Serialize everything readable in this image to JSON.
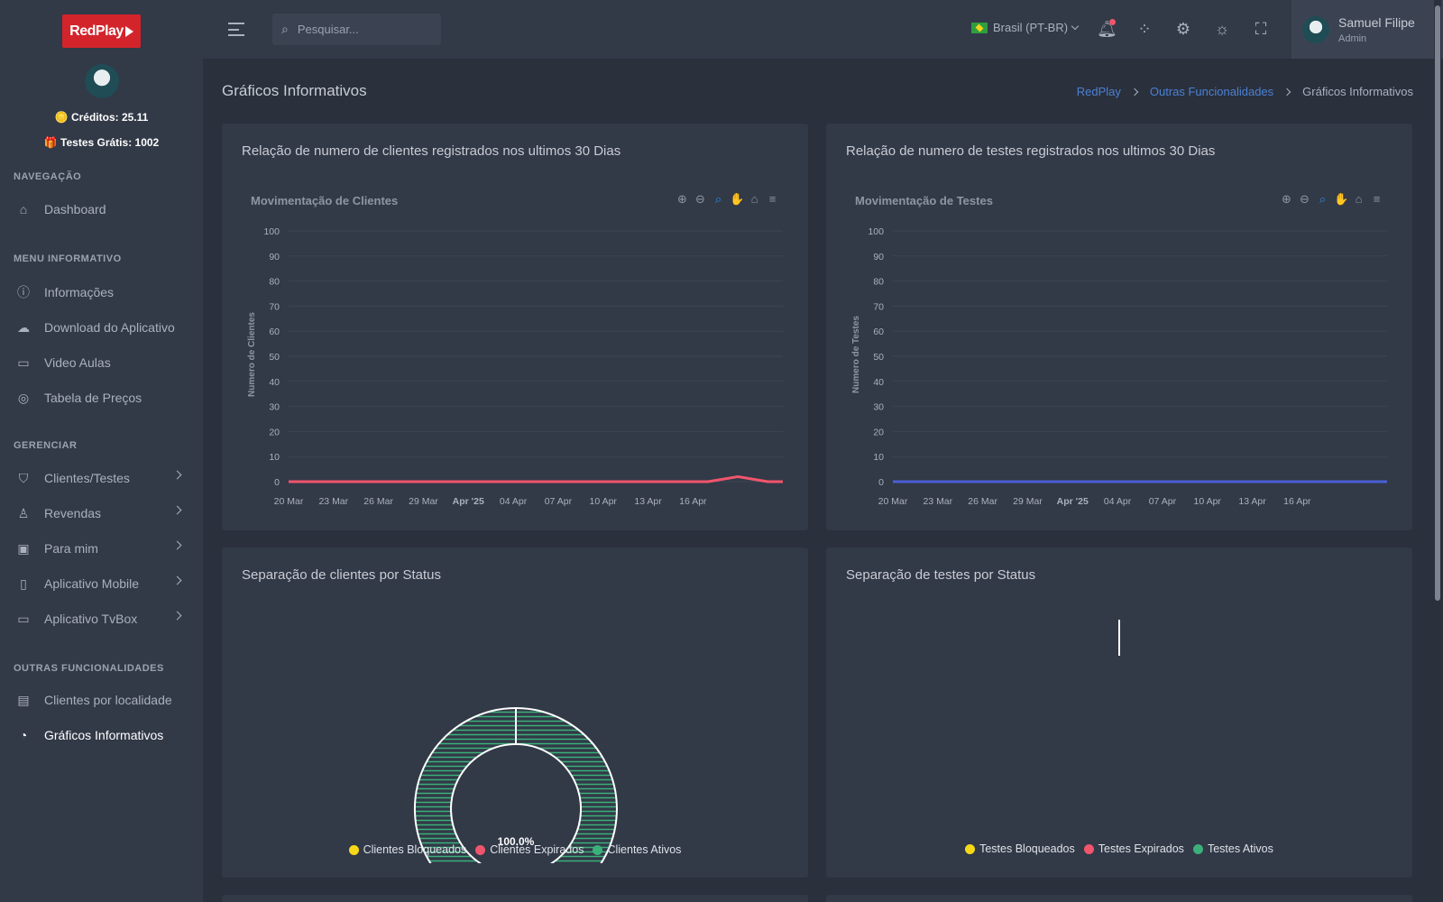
{
  "brand": {
    "logo_text": "RedPlay"
  },
  "sidebar": {
    "credits": "🪙 Créditos: 25.11",
    "free_tests": "🎁 Testes Grátis: 1002",
    "sections": [
      {
        "title": "NAVEGAÇÃO"
      },
      {
        "title": "MENU INFORMATIVO"
      },
      {
        "title": "GERENCIAR"
      },
      {
        "title": "OUTRAS FUNCIONALIDADES"
      }
    ],
    "items": {
      "dashboard": "Dashboard",
      "informacoes": "Informações",
      "download": "Download do Aplicativo",
      "video": "Video Aulas",
      "precos": "Tabela de Preços",
      "clientes": "Clientes/Testes",
      "revendas": "Revendas",
      "paramim": "Para mim",
      "mobile": "Aplicativo Mobile",
      "tvbox": "Aplicativo TvBox",
      "localidade": "Clientes por localidade",
      "graficos": "Gráficos Informativos"
    }
  },
  "topbar": {
    "search_placeholder": "Pesquisar...",
    "language": "Brasil (PT-BR)",
    "user_name": "Samuel Filipe",
    "user_role": "Admin",
    "icons": [
      "menu-icon",
      "search-icon",
      "bell-icon",
      "apps-icon",
      "gear-icon",
      "sun-icon",
      "fullscreen-icon"
    ]
  },
  "page": {
    "title": "Gráficos Informativos",
    "breadcrumb": [
      "RedPlay",
      "Outras Funcionalidades",
      "Gráficos Informativos"
    ]
  },
  "cards": {
    "clients_line_title": "Relação de numero de clientes registrados nos ultimos 30 Dias",
    "tests_line_title": "Relação de numero de testes registrados nos ultimos 30 Dias",
    "clients_pie_title": "Separação de clientes por Status",
    "tests_pie_title": "Separação de testes por Status"
  },
  "colors": {
    "accent": "#4a81d4",
    "clients_line": "#f1556c",
    "tests_line": "#4a5fd4",
    "blocked": "#f7d818",
    "expired": "#f1556c",
    "active": "#3bb07a"
  },
  "chart_data": [
    {
      "type": "line",
      "title": "Movimentação de Clientes",
      "ylabel": "Numero de Clientes",
      "ylim": [
        0,
        100
      ],
      "yticks": [
        "100",
        "90",
        "80",
        "70",
        "60",
        "50",
        "40",
        "30",
        "20",
        "10",
        "0"
      ],
      "xticks": [
        "20 Mar",
        "23 Mar",
        "26 Mar",
        "29 Mar",
        "Apr '25",
        "04 Apr",
        "07 Apr",
        "10 Apr",
        "13 Apr",
        "16 Apr"
      ],
      "series": [
        {
          "values": [
            0,
            0,
            0,
            0,
            0,
            0,
            0,
            0,
            0,
            0,
            0,
            0,
            0,
            0,
            0,
            0,
            0,
            0,
            0,
            0,
            0,
            0,
            0,
            0,
            0,
            0,
            0,
            0,
            0,
            1,
            2,
            1,
            0,
            0
          ]
        }
      ],
      "grid": true
    },
    {
      "type": "line",
      "title": "Movimentação de Testes",
      "ylabel": "Numero de Testes",
      "ylim": [
        0,
        100
      ],
      "yticks": [
        "100",
        "90",
        "80",
        "70",
        "60",
        "50",
        "40",
        "30",
        "20",
        "10",
        "0"
      ],
      "xticks": [
        "20 Mar",
        "23 Mar",
        "26 Mar",
        "29 Mar",
        "Apr '25",
        "04 Apr",
        "07 Apr",
        "10 Apr",
        "13 Apr",
        "16 Apr"
      ],
      "series": [
        {
          "values": [
            0,
            0,
            0,
            0,
            0,
            0,
            0,
            0,
            0,
            0,
            0,
            0,
            0,
            0,
            0,
            0,
            0,
            0,
            0,
            0,
            0,
            0,
            0,
            0,
            0,
            0,
            0,
            0,
            0,
            0,
            0,
            0,
            0,
            0
          ]
        }
      ],
      "grid": true
    },
    {
      "type": "pie",
      "categories": [
        "Clientes Bloqueados",
        "Clientes Expirados",
        "Clientes Ativos"
      ],
      "values": [
        0,
        0,
        100
      ],
      "data_label": "100.0%",
      "legend": "bottom"
    },
    {
      "type": "pie",
      "categories": [
        "Testes Bloqueados",
        "Testes Expirados",
        "Testes Ativos"
      ],
      "values": [
        0,
        0,
        0
      ],
      "legend": "bottom"
    }
  ]
}
